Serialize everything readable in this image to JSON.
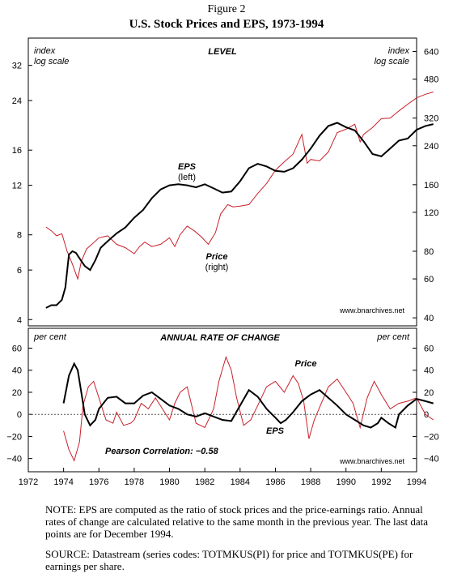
{
  "figure_number": "Figure 2",
  "figure_title": "U.S. Stock Prices and EPS, 1973-1994",
  "notes": {
    "note": "NOTE: EPS are computed as the ratio of stock prices and the price-earnings ratio. Annual rates of change are calculated relative to the same month in the previous year. The last data points are for December 1994.",
    "source": "SOURCE: Datastream (series codes:  TOTMKUS(PI) for price and TOTMKUS(PE) for earnings per share."
  },
  "colors": {
    "eps": "#000000",
    "price": "#c8202a",
    "zero_line": "#555555"
  },
  "chart_data": [
    {
      "type": "line",
      "title": "LEVEL",
      "left_axis_label": [
        "index",
        "log scale"
      ],
      "right_axis_label": [
        "index",
        "log scale"
      ],
      "yscale": "log",
      "left_ticks": [
        "4",
        "6",
        "8",
        "12",
        "16",
        "24",
        "32"
      ],
      "left_tick_values": [
        4,
        6,
        8,
        12,
        16,
        24,
        32
      ],
      "left_ylim": [
        3.8,
        40
      ],
      "right_ticks": [
        "40",
        "60",
        "80",
        "120",
        "160",
        "240",
        "320",
        "480",
        "640"
      ],
      "right_tick_values": [
        40,
        60,
        80,
        120,
        160,
        240,
        320,
        480,
        640
      ],
      "right_ylim": [
        36.8,
        736
      ],
      "credit": "www.bnarchives.net",
      "series": [
        {
          "name": "EPS",
          "sublabel": "(left)",
          "axis": "left",
          "x": [
            1973.0,
            1973.3,
            1973.6,
            1973.9,
            1974.1,
            1974.3,
            1974.5,
            1974.7,
            1974.9,
            1975.2,
            1975.5,
            1975.8,
            1976.1,
            1976.5,
            1977.0,
            1977.5,
            1978.0,
            1978.5,
            1979.0,
            1979.5,
            1980.0,
            1980.5,
            1981.0,
            1981.5,
            1982.0,
            1982.5,
            1983.0,
            1983.5,
            1984.0,
            1984.5,
            1985.0,
            1985.5,
            1986.0,
            1986.5,
            1987.0,
            1987.5,
            1988.0,
            1988.5,
            1989.0,
            1989.5,
            1990.0,
            1990.5,
            1991.0,
            1991.5,
            1992.0,
            1992.5,
            1993.0,
            1993.5,
            1994.0,
            1994.5,
            1994.95
          ],
          "values": [
            4.4,
            4.5,
            4.5,
            4.7,
            5.2,
            6.8,
            7.0,
            6.9,
            6.6,
            6.2,
            6.0,
            6.5,
            7.2,
            7.6,
            8.1,
            8.5,
            9.2,
            9.8,
            10.8,
            11.6,
            12.0,
            12.1,
            12.0,
            11.8,
            12.1,
            11.7,
            11.3,
            11.4,
            12.4,
            13.8,
            14.3,
            14.0,
            13.5,
            13.4,
            13.8,
            14.8,
            16.2,
            18.0,
            19.5,
            20.0,
            19.3,
            18.8,
            17.2,
            15.5,
            15.2,
            16.2,
            17.3,
            17.6,
            18.9,
            19.5,
            19.8
          ]
        },
        {
          "name": "Price",
          "sublabel": "(right)",
          "axis": "right",
          "x": [
            1973.0,
            1973.3,
            1973.6,
            1973.9,
            1974.2,
            1974.5,
            1974.8,
            1975.0,
            1975.3,
            1975.6,
            1976.0,
            1976.5,
            1977.0,
            1977.5,
            1978.0,
            1978.3,
            1978.6,
            1979.0,
            1979.5,
            1980.0,
            1980.3,
            1980.6,
            1981.0,
            1981.4,
            1981.8,
            1982.2,
            1982.6,
            1982.9,
            1983.3,
            1983.6,
            1984.0,
            1984.5,
            1985.0,
            1985.5,
            1986.0,
            1986.5,
            1987.0,
            1987.5,
            1987.8,
            1988.0,
            1988.5,
            1989.0,
            1989.5,
            1990.0,
            1990.5,
            1990.8,
            1991.0,
            1991.5,
            1992.0,
            1992.5,
            1993.0,
            1993.5,
            1994.0,
            1994.5,
            1994.95
          ],
          "values": [
            103,
            99,
            94,
            96,
            80,
            70,
            60,
            72,
            82,
            86,
            92,
            94,
            86,
            83,
            78,
            84,
            88,
            84,
            86,
            92,
            84,
            95,
            104,
            99,
            93,
            86,
            97,
            118,
            130,
            127,
            128,
            130,
            146,
            162,
            186,
            203,
            220,
            270,
            200,
            208,
            205,
            225,
            275,
            285,
            300,
            250,
            270,
            290,
            318,
            320,
            345,
            370,
            395,
            410,
            420
          ]
        }
      ],
      "annotations": [
        {
          "text": "EPS",
          "sub": "(left)"
        },
        {
          "text": "Price",
          "sub": "(right)"
        }
      ]
    },
    {
      "type": "line",
      "title": "ANNUAL RATE OF CHANGE",
      "left_axis_label": "per cent",
      "right_axis_label": "per cent",
      "yticks": [
        "−40",
        "−20",
        "0",
        "20",
        "40",
        "60"
      ],
      "ytick_values": [
        -40,
        -20,
        0,
        20,
        40,
        60
      ],
      "ylim": [
        -52,
        78
      ],
      "xticks": [
        "1972",
        "1974",
        "1976",
        "1978",
        "1980",
        "1982",
        "1984",
        "1986",
        "1988",
        "1990",
        "1992",
        "1994"
      ],
      "xtick_values": [
        1972,
        1974,
        1976,
        1978,
        1980,
        1982,
        1984,
        1986,
        1988,
        1990,
        1992,
        1994
      ],
      "xlim": [
        1972,
        1994
      ],
      "correlation_label": "Pearson Correlation:  −0.58",
      "credit": "www.bnarchives.net",
      "series": [
        {
          "name": "EPS",
          "x": [
            1974.0,
            1974.3,
            1974.6,
            1974.8,
            1975.0,
            1975.2,
            1975.5,
            1975.8,
            1976.0,
            1976.5,
            1977.0,
            1977.5,
            1978.0,
            1978.5,
            1979.0,
            1979.5,
            1980.0,
            1980.5,
            1981.0,
            1981.5,
            1982.0,
            1982.5,
            1983.0,
            1983.5,
            1984.0,
            1984.5,
            1985.0,
            1985.5,
            1986.0,
            1986.3,
            1986.6,
            1987.0,
            1987.5,
            1988.0,
            1988.5,
            1989.0,
            1989.5,
            1990.0,
            1990.5,
            1991.0,
            1991.4,
            1991.8,
            1992.0,
            1992.4,
            1992.8,
            1993.0,
            1993.5,
            1994.0,
            1994.5,
            1994.95
          ],
          "values": [
            10,
            35,
            46,
            40,
            20,
            0,
            -10,
            -5,
            5,
            15,
            16,
            10,
            10,
            17,
            20,
            14,
            8,
            5,
            0,
            -2,
            1,
            -2,
            -5,
            -6,
            8,
            22,
            16,
            5,
            -3,
            -8,
            -5,
            2,
            12,
            18,
            22,
            15,
            8,
            0,
            -5,
            -10,
            -12,
            -8,
            -3,
            -8,
            -12,
            0,
            8,
            14,
            12,
            10
          ]
        },
        {
          "name": "Price",
          "x": [
            1974.0,
            1974.3,
            1974.6,
            1974.9,
            1975.1,
            1975.4,
            1975.7,
            1976.0,
            1976.4,
            1976.8,
            1977.0,
            1977.4,
            1977.8,
            1978.0,
            1978.4,
            1978.8,
            1979.2,
            1979.6,
            1980.0,
            1980.3,
            1980.6,
            1981.0,
            1981.5,
            1982.0,
            1982.5,
            1982.8,
            1983.2,
            1983.5,
            1983.8,
            1984.2,
            1984.6,
            1985.0,
            1985.5,
            1986.0,
            1986.5,
            1987.0,
            1987.3,
            1987.6,
            1987.9,
            1988.2,
            1988.6,
            1989.0,
            1989.5,
            1990.0,
            1990.4,
            1990.8,
            1991.2,
            1991.6,
            1992.0,
            1992.5,
            1993.0,
            1993.5,
            1994.0,
            1994.5,
            1994.95
          ],
          "values": [
            -15,
            -32,
            -42,
            -25,
            8,
            25,
            30,
            15,
            -5,
            -8,
            2,
            -10,
            -8,
            -5,
            10,
            5,
            15,
            5,
            -5,
            10,
            20,
            25,
            -8,
            -12,
            5,
            30,
            52,
            40,
            15,
            -10,
            -5,
            8,
            25,
            30,
            20,
            35,
            28,
            12,
            -22,
            -5,
            10,
            25,
            32,
            20,
            10,
            -12,
            15,
            30,
            18,
            5,
            10,
            12,
            15,
            0,
            -5
          ]
        }
      ]
    }
  ]
}
